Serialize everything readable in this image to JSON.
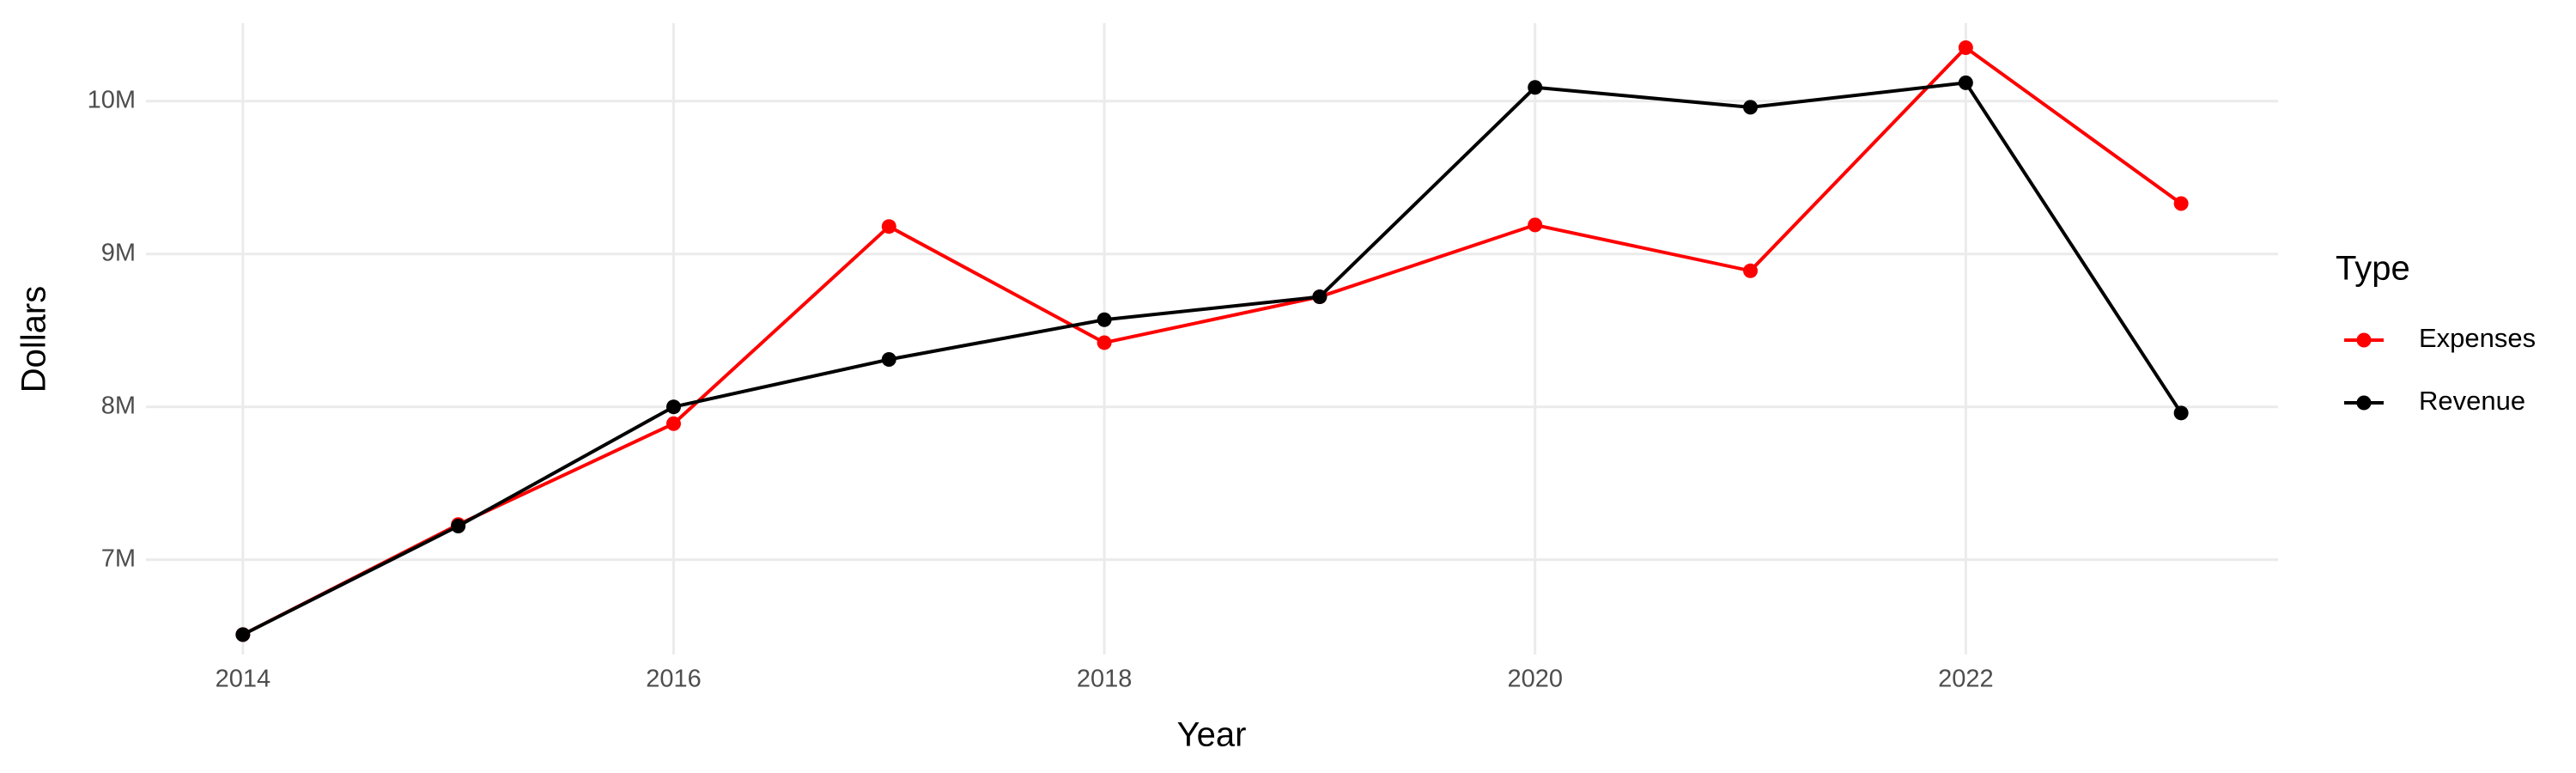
{
  "chart_data": {
    "type": "line",
    "x_label": "Year",
    "y_label": "Dollars",
    "legend_title": "Type",
    "legend_position": "right",
    "grid": true,
    "x": [
      2014,
      2015,
      2016,
      2017,
      2018,
      2019,
      2020,
      2021,
      2022,
      2023
    ],
    "series": [
      {
        "name": "Expenses",
        "color": "#ff0000",
        "values": [
          6510000,
          7230000,
          7890000,
          9180000,
          8420000,
          8720000,
          9190000,
          8890000,
          10350000,
          9330000
        ]
      },
      {
        "name": "Revenue",
        "color": "#000000",
        "values": [
          6510000,
          7220000,
          8000000,
          8310000,
          8570000,
          8720000,
          10090000,
          9960000,
          10120000,
          7960000
        ]
      }
    ],
    "xlim": [
      2013.55,
      2023.45
    ],
    "xticks": [
      2014,
      2016,
      2018,
      2020,
      2022
    ],
    "ylim": [
      6380000,
      10510000
    ],
    "yticks": [
      {
        "value": 7000000,
        "label": "7M"
      },
      {
        "value": 8000000,
        "label": "8M"
      },
      {
        "value": 9000000,
        "label": "9M"
      },
      {
        "value": 10000000,
        "label": "10M"
      }
    ]
  }
}
